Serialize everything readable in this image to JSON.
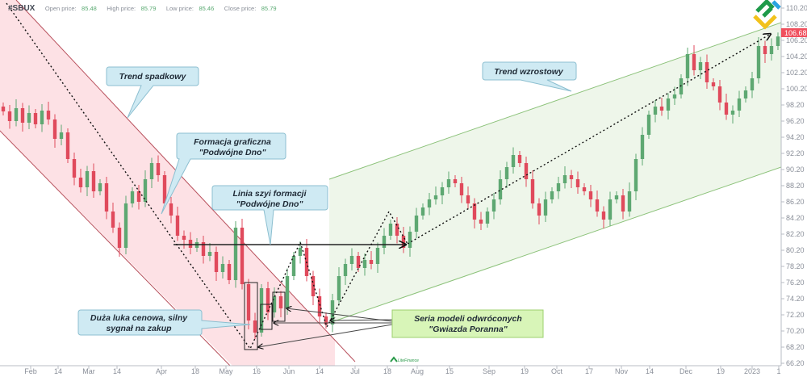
{
  "header": {
    "symbol": "#SBUX",
    "open_label": "Open price:",
    "open_value": "85.48",
    "high_label": "High price:",
    "high_value": "85.79",
    "low_label": "Low price:",
    "low_value": "85.46",
    "close_label": "Close price:",
    "close_value": "85.79"
  },
  "annotations": {
    "downtrend": "Trend spadkowy",
    "double_bottom_1": "Formacja graficzna",
    "double_bottom_2": "\"Podwójne Dno\"",
    "neckline_1": "Linia szyi formacji",
    "neckline_2": "\"Podwójne Dno\"",
    "gap_1": "Duża luka cenowa, silny",
    "gap_2": "sygnał na zakup",
    "uptrend": "Trend wzrostowy",
    "morning_star_1": "Seria modeli odwróconych",
    "morning_star_2": "\"Gwiazda Poranna\""
  },
  "logo_text": "LiteFinance",
  "colors": {
    "up": "#5ea872",
    "down": "#e04a5c",
    "downtrend_fill": "#fde1e5",
    "downtrend_line": "#b8505c",
    "uptrend_fill": "#eef6ea",
    "uptrend_line": "#8cc27a",
    "callout_fill": "#cfeaf3",
    "callout_border": "#8cbfd0",
    "price_label": "#f0505e"
  },
  "chart_data": {
    "type": "candlestick",
    "title": "#SBUX",
    "last_price": "106.68",
    "ylim": [
      66.2,
      110.2
    ],
    "y_ticks": [
      "110.20",
      "108.20",
      "106.20",
      "104.20",
      "102.20",
      "100.20",
      "98.20",
      "96.20",
      "94.20",
      "92.20",
      "90.20",
      "88.20",
      "86.20",
      "84.20",
      "82.20",
      "80.20",
      "78.20",
      "76.20",
      "74.20",
      "72.20",
      "70.20",
      "68.20",
      "66.20"
    ],
    "x_ticks": [
      "Feb",
      "14",
      "Mar",
      "14",
      "Apr",
      "18",
      "May",
      "16",
      "Jun",
      "14",
      "Jul",
      "18",
      "Aug",
      "15",
      "Sep",
      "19",
      "Oct",
      "17",
      "Nov",
      "14",
      "Dec",
      "19",
      "2023",
      "1"
    ],
    "closes": [
      97.4,
      96.2,
      97.8,
      96.0,
      97.2,
      95.8,
      97.5,
      96.4,
      94.0,
      94.8,
      91.5,
      89.2,
      88.0,
      90.0,
      87.5,
      88.5,
      85.0,
      83.0,
      80.5,
      86.0,
      87.5,
      86.2,
      89.0,
      91.0,
      89.5,
      86.0,
      84.5,
      82.0,
      81.5,
      80.5,
      81.2,
      79.5,
      80.0,
      77.5,
      78.5,
      76.5,
      83.0,
      76.0,
      71.5,
      70.0,
      75.5,
      72.5,
      74.5,
      73.0,
      77.0,
      79.5,
      80.5,
      77.0,
      74.5,
      72.0,
      71.0,
      74.0,
      77.0,
      78.5,
      79.5,
      78.0,
      79.0,
      78.5,
      80.5,
      82.0,
      83.5,
      82.0,
      80.5,
      82.5,
      84.5,
      85.5,
      86.5,
      87.0,
      88.0,
      89.0,
      88.5,
      87.0,
      86.0,
      84.0,
      83.5,
      85.0,
      86.5,
      89.0,
      90.5,
      92.0,
      91.0,
      89.0,
      86.0,
      84.5,
      86.5,
      87.5,
      88.5,
      89.5,
      89.0,
      88.0,
      87.5,
      86.5,
      85.0,
      84.0,
      86.5,
      87.0,
      85.0,
      87.5,
      91.5,
      94.5,
      97.0,
      98.0,
      97.5,
      99.0,
      99.5,
      101.5,
      104.5,
      102.5,
      103.5,
      101.0,
      100.5,
      98.5,
      97.0,
      97.5,
      99.0,
      100.0,
      101.5,
      105.5,
      104.5,
      105.5,
      106.68
    ],
    "neckline_price": 80.2
  }
}
